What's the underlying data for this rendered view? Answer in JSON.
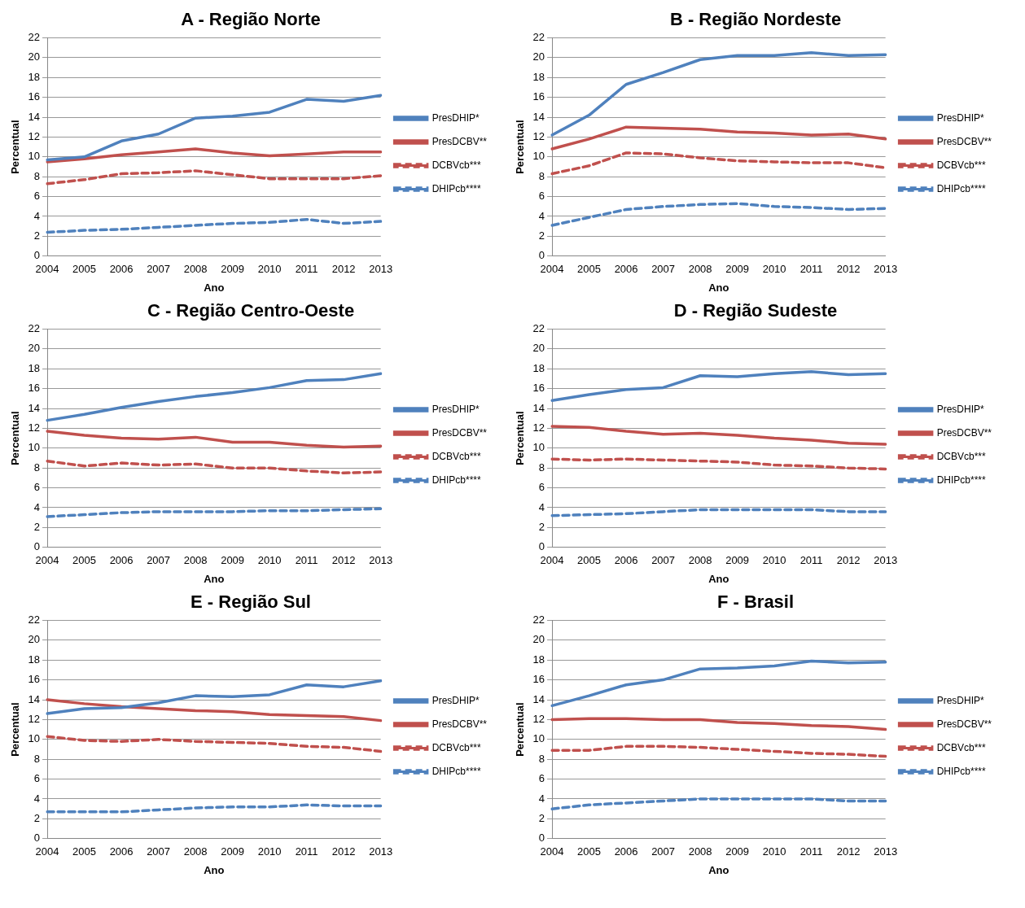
{
  "chart_data": [
    {
      "type": "line",
      "title": "A - Região Norte",
      "xlabel": "Ano",
      "ylabel": "Percentual",
      "categories": [
        "2004",
        "2005",
        "2006",
        "2007",
        "2008",
        "2009",
        "2010",
        "2011",
        "2012",
        "2013"
      ],
      "ylim": [
        0,
        22
      ],
      "yticks": [
        0,
        2,
        4,
        6,
        8,
        10,
        12,
        14,
        16,
        18,
        20,
        22
      ],
      "grid": "y",
      "legend": "right",
      "marker": "none",
      "series": [
        {
          "name": "PresDHIP*",
          "color": "#4f81bd",
          "line_style": "solid",
          "values": [
            9.7,
            10.0,
            11.6,
            12.3,
            13.9,
            14.1,
            14.5,
            15.8,
            15.6,
            16.2
          ]
        },
        {
          "name": "PresDCBV**",
          "color": "#c0504d",
          "line_style": "solid",
          "values": [
            9.5,
            9.8,
            10.2,
            10.5,
            10.8,
            10.4,
            10.1,
            10.3,
            10.5,
            10.5
          ]
        },
        {
          "name": "DCBVcb***",
          "color": "#c0504d",
          "line_style": "dashed",
          "values": [
            7.3,
            7.7,
            8.3,
            8.4,
            8.6,
            8.2,
            7.8,
            7.8,
            7.8,
            8.1
          ]
        },
        {
          "name": "DHIPcb****",
          "color": "#4f81bd",
          "line_style": "dashed",
          "values": [
            2.4,
            2.6,
            2.7,
            2.9,
            3.1,
            3.3,
            3.4,
            3.7,
            3.3,
            3.5
          ]
        }
      ]
    },
    {
      "type": "line",
      "title": "B - Região Nordeste",
      "xlabel": "Ano",
      "ylabel": "Percentual",
      "categories": [
        "2004",
        "2005",
        "2006",
        "2007",
        "2008",
        "2009",
        "2010",
        "2011",
        "2012",
        "2013"
      ],
      "ylim": [
        0,
        22
      ],
      "yticks": [
        0,
        2,
        4,
        6,
        8,
        10,
        12,
        14,
        16,
        18,
        20,
        22
      ],
      "grid": "y",
      "legend": "right",
      "marker": "none",
      "series": [
        {
          "name": "PresDHIP*",
          "color": "#4f81bd",
          "line_style": "solid",
          "values": [
            12.2,
            14.2,
            17.3,
            18.5,
            19.8,
            20.2,
            20.2,
            20.5,
            20.2,
            20.3
          ]
        },
        {
          "name": "PresDCBV**",
          "color": "#c0504d",
          "line_style": "solid",
          "values": [
            10.8,
            11.8,
            13.0,
            12.9,
            12.8,
            12.5,
            12.4,
            12.2,
            12.3,
            11.8
          ]
        },
        {
          "name": "DCBVcb***",
          "color": "#c0504d",
          "line_style": "dashed",
          "values": [
            8.3,
            9.1,
            10.4,
            10.3,
            9.9,
            9.6,
            9.5,
            9.4,
            9.4,
            8.9
          ]
        },
        {
          "name": "DHIPcb****",
          "color": "#4f81bd",
          "line_style": "dashed",
          "values": [
            3.1,
            3.9,
            4.7,
            5.0,
            5.2,
            5.3,
            5.0,
            4.9,
            4.7,
            4.8
          ]
        }
      ]
    },
    {
      "type": "line",
      "title": "C - Região Centro-Oeste",
      "xlabel": "Ano",
      "ylabel": "Percentual",
      "categories": [
        "2004",
        "2005",
        "2006",
        "2007",
        "2008",
        "2009",
        "2010",
        "2011",
        "2012",
        "2013"
      ],
      "ylim": [
        0,
        22
      ],
      "yticks": [
        0,
        2,
        4,
        6,
        8,
        10,
        12,
        14,
        16,
        18,
        20,
        22
      ],
      "grid": "y",
      "legend": "right",
      "marker": "none",
      "series": [
        {
          "name": "PresDHIP*",
          "color": "#4f81bd",
          "line_style": "solid",
          "values": [
            12.8,
            13.4,
            14.1,
            14.7,
            15.2,
            15.6,
            16.1,
            16.8,
            16.9,
            17.5
          ]
        },
        {
          "name": "PresDCBV**",
          "color": "#c0504d",
          "line_style": "solid",
          "values": [
            11.7,
            11.3,
            11.0,
            10.9,
            11.1,
            10.6,
            10.6,
            10.3,
            10.1,
            10.2
          ]
        },
        {
          "name": "DCBVcb***",
          "color": "#c0504d",
          "line_style": "dashed",
          "values": [
            8.7,
            8.2,
            8.5,
            8.3,
            8.4,
            8.0,
            8.0,
            7.7,
            7.5,
            7.6
          ]
        },
        {
          "name": "DHIPcb****",
          "color": "#4f81bd",
          "line_style": "dashed",
          "values": [
            3.1,
            3.3,
            3.5,
            3.6,
            3.6,
            3.6,
            3.7,
            3.7,
            3.8,
            3.9
          ]
        }
      ]
    },
    {
      "type": "line",
      "title": "D - Região Sudeste",
      "xlabel": "Ano",
      "ylabel": "Percentual",
      "categories": [
        "2004",
        "2005",
        "2006",
        "2007",
        "2008",
        "2009",
        "2010",
        "2011",
        "2012",
        "2013"
      ],
      "ylim": [
        0,
        22
      ],
      "yticks": [
        0,
        2,
        4,
        6,
        8,
        10,
        12,
        14,
        16,
        18,
        20,
        22
      ],
      "grid": "y",
      "legend": "right",
      "marker": "none",
      "series": [
        {
          "name": "PresDHIP*",
          "color": "#4f81bd",
          "line_style": "solid",
          "values": [
            14.8,
            15.4,
            15.9,
            16.1,
            17.3,
            17.2,
            17.5,
            17.7,
            17.4,
            17.5
          ]
        },
        {
          "name": "PresDCBV**",
          "color": "#c0504d",
          "line_style": "solid",
          "values": [
            12.2,
            12.1,
            11.7,
            11.4,
            11.5,
            11.3,
            11.0,
            10.8,
            10.5,
            10.4
          ]
        },
        {
          "name": "DCBVcb***",
          "color": "#c0504d",
          "line_style": "dashed",
          "values": [
            8.9,
            8.8,
            8.9,
            8.8,
            8.7,
            8.6,
            8.3,
            8.2,
            8.0,
            7.9
          ]
        },
        {
          "name": "DHIPcb****",
          "color": "#4f81bd",
          "line_style": "dashed",
          "values": [
            3.2,
            3.3,
            3.4,
            3.6,
            3.8,
            3.8,
            3.8,
            3.8,
            3.6,
            3.6
          ]
        }
      ]
    },
    {
      "type": "line",
      "title": "E - Região Sul",
      "xlabel": "Ano",
      "ylabel": "Percentual",
      "categories": [
        "2004",
        "2005",
        "2006",
        "2007",
        "2008",
        "2009",
        "2010",
        "2011",
        "2012",
        "2013"
      ],
      "ylim": [
        0,
        22
      ],
      "yticks": [
        0,
        2,
        4,
        6,
        8,
        10,
        12,
        14,
        16,
        18,
        20,
        22
      ],
      "grid": "y",
      "legend": "right",
      "marker": "none",
      "series": [
        {
          "name": "PresDHIP*",
          "color": "#4f81bd",
          "line_style": "solid",
          "values": [
            12.6,
            13.1,
            13.2,
            13.7,
            14.4,
            14.3,
            14.5,
            15.5,
            15.3,
            15.9
          ]
        },
        {
          "name": "PresDCBV**",
          "color": "#c0504d",
          "line_style": "solid",
          "values": [
            14.0,
            13.6,
            13.3,
            13.1,
            12.9,
            12.8,
            12.5,
            12.4,
            12.3,
            11.9
          ]
        },
        {
          "name": "DCBVcb***",
          "color": "#c0504d",
          "line_style": "dashed",
          "values": [
            10.3,
            9.9,
            9.8,
            10.0,
            9.8,
            9.7,
            9.6,
            9.3,
            9.2,
            8.8
          ]
        },
        {
          "name": "DHIPcb****",
          "color": "#4f81bd",
          "line_style": "dashed",
          "values": [
            2.7,
            2.7,
            2.7,
            2.9,
            3.1,
            3.2,
            3.2,
            3.4,
            3.3,
            3.3
          ]
        }
      ]
    },
    {
      "type": "line",
      "title": "F - Brasil",
      "xlabel": "Ano",
      "ylabel": "Percentual",
      "categories": [
        "2004",
        "2005",
        "2006",
        "2007",
        "2008",
        "2009",
        "2010",
        "2011",
        "2012",
        "2013"
      ],
      "ylim": [
        0,
        22
      ],
      "yticks": [
        0,
        2,
        4,
        6,
        8,
        10,
        12,
        14,
        16,
        18,
        20,
        22
      ],
      "grid": "y",
      "legend": "right",
      "marker": "none",
      "series": [
        {
          "name": "PresDHIP*",
          "color": "#4f81bd",
          "line_style": "solid",
          "values": [
            13.4,
            14.4,
            15.5,
            16.0,
            17.1,
            17.2,
            17.4,
            17.9,
            17.7,
            17.8
          ]
        },
        {
          "name": "PresDCBV**",
          "color": "#c0504d",
          "line_style": "solid",
          "values": [
            12.0,
            12.1,
            12.1,
            12.0,
            12.0,
            11.7,
            11.6,
            11.4,
            11.3,
            11.0
          ]
        },
        {
          "name": "DCBVcb***",
          "color": "#c0504d",
          "line_style": "dashed",
          "values": [
            8.9,
            8.9,
            9.3,
            9.3,
            9.2,
            9.0,
            8.8,
            8.6,
            8.5,
            8.3
          ]
        },
        {
          "name": "DHIPcb****",
          "color": "#4f81bd",
          "line_style": "dashed",
          "values": [
            3.0,
            3.4,
            3.6,
            3.8,
            4.0,
            4.0,
            4.0,
            4.0,
            3.8,
            3.8
          ]
        }
      ]
    }
  ]
}
